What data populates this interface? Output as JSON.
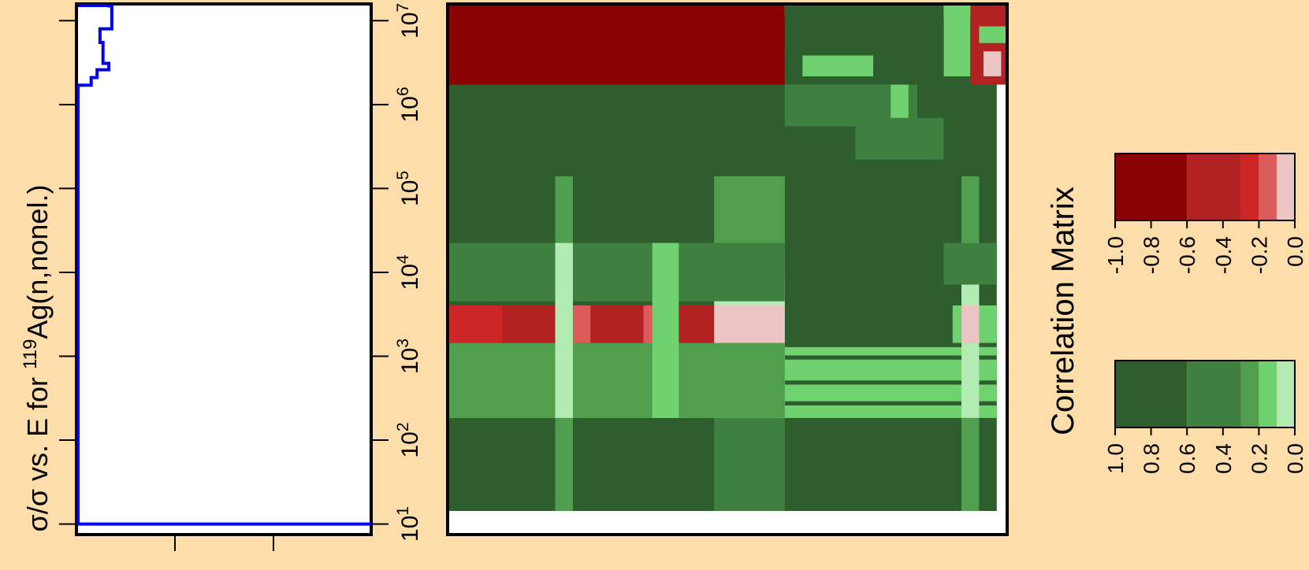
{
  "colors": {
    "background": "#FDDDAA",
    "uncertainty_line": "#0000EE",
    "negative_scale": [
      "#8B0000",
      "#B22222",
      "#CD2626",
      "#DC5C5C",
      "#EBC4C4"
    ],
    "positive_scale": [
      "#2E5E2E",
      "#3F7F3F",
      "#4F9F4F",
      "#6FD26F",
      "#B2ECB2"
    ]
  },
  "left_panel": {
    "ylabel_prefix": "σ/σ vs. E for ",
    "ylabel_isotope": "119",
    "ylabel_suffix": "Ag(n,nonel.)"
  },
  "energy_ticks": [
    {
      "base": "10",
      "exp": "1"
    },
    {
      "base": "10",
      "exp": "2"
    },
    {
      "base": "10",
      "exp": "3"
    },
    {
      "base": "10",
      "exp": "4"
    },
    {
      "base": "10",
      "exp": "5"
    },
    {
      "base": "10",
      "exp": "6"
    },
    {
      "base": "10",
      "exp": "7"
    }
  ],
  "legend": {
    "title": "Correlation Matrix",
    "negative_labels": [
      "-1.0",
      "-0.8",
      "-0.6",
      "-0.4",
      "-0.2",
      "0.0"
    ],
    "positive_labels": [
      "1.0",
      "0.8",
      "0.6",
      "0.4",
      "0.2",
      "0.0"
    ]
  },
  "chart_data": [
    {
      "type": "line",
      "description_axis": "log10 energy",
      "x_scale": "linear",
      "y_scale": "log",
      "ylim": [
        10,
        20000000
      ],
      "series": [
        {
          "points": [
            [
              0.0,
              20000000
            ],
            [
              0.1,
              20000000
            ],
            [
              0.1,
              17000000
            ],
            [
              0.11,
              17000000
            ],
            [
              0.11,
              15000000
            ],
            [
              0.12,
              15000000
            ],
            [
              0.12,
              8000000
            ],
            [
              0.08,
              8000000
            ],
            [
              0.08,
              5500000
            ],
            [
              0.09,
              5500000
            ],
            [
              0.09,
              3100000
            ],
            [
              0.11,
              3100000
            ],
            [
              0.11,
              2600000
            ],
            [
              0.07,
              2600000
            ],
            [
              0.07,
              2100000
            ],
            [
              0.05,
              2100000
            ],
            [
              0.05,
              1700000
            ],
            [
              0.0,
              1700000
            ],
            [
              -0.05,
              1700000
            ],
            [
              -0.05,
              1050000
            ],
            [
              -0.08,
              1050000
            ],
            [
              -0.08,
              820000
            ],
            [
              -0.1,
              820000
            ],
            [
              -0.1,
              610000
            ],
            [
              -0.12,
              610000
            ],
            [
              -0.12,
              200000
            ],
            [
              -0.2,
              200000
            ],
            [
              -0.2,
              290
            ],
            [
              -0.22,
              290
            ],
            [
              -0.22,
              10
            ],
            [
              0.0,
              10
            ],
            [
              1.0,
              10
            ]
          ]
        }
      ]
    },
    {
      "type": "heatmap",
      "x_axis": "energy (log scale, 10^1 to 10^7)",
      "y_axis": "energy (log scale, 10^1 to 10^7)",
      "value_range": [
        -1,
        1
      ],
      "blocks": [
        {
          "x": [
            1.0,
            7.2
          ],
          "y": [
            1.0,
            7.2
          ],
          "v": 0.9
        },
        {
          "x": [
            1.0,
            4.8
          ],
          "y": [
            6.4,
            7.35
          ],
          "v": -1.0
        },
        {
          "x": [
            2.2,
            4.8
          ],
          "y": [
            6.8,
            7.25
          ],
          "v": -1.0
        },
        {
          "x": [
            4.8,
            6.6
          ],
          "y": [
            6.4,
            7.35
          ],
          "v": 0.85
        },
        {
          "x": [
            5.0,
            5.8
          ],
          "y": [
            6.5,
            6.75
          ],
          "v": 0.3
        },
        {
          "x": [
            5.9,
            6.3
          ],
          "y": [
            6.5,
            6.7
          ],
          "v": 0.85
        },
        {
          "x": [
            6.6,
            6.9
          ],
          "y": [
            6.5,
            7.35
          ],
          "v": 0.2
        },
        {
          "x": [
            6.9,
            7.3
          ],
          "y": [
            6.4,
            7.35
          ],
          "v": -0.7
        },
        {
          "x": [
            7.0,
            7.3
          ],
          "y": [
            6.9,
            7.1
          ],
          "v": 0.2
        },
        {
          "x": [
            7.05,
            7.25
          ],
          "y": [
            6.5,
            6.8
          ],
          "v": -0.2
        },
        {
          "x": [
            4.8,
            6.8
          ],
          "y": [
            5.5,
            6.4
          ],
          "v": 0.9
        },
        {
          "x": [
            4.8,
            5.6
          ],
          "y": [
            5.9,
            6.4
          ],
          "v": 0.7
        },
        {
          "x": [
            5.6,
            6.3
          ],
          "y": [
            6.0,
            6.4
          ],
          "v": 0.6
        },
        {
          "x": [
            6.0,
            6.2
          ],
          "y": [
            6.0,
            6.4
          ],
          "v": 0.3
        },
        {
          "x": [
            5.6,
            6.6
          ],
          "y": [
            5.5,
            6.0
          ],
          "v": 0.7
        },
        {
          "x": [
            4.0,
            4.8
          ],
          "y": [
            1.0,
            5.3
          ],
          "v": 0.7
        },
        {
          "x": [
            4.0,
            4.8
          ],
          "y": [
            4.1,
            5.3
          ],
          "v": 0.5
        },
        {
          "x": [
            4.0,
            4.8
          ],
          "y": [
            2.4,
            4.1
          ],
          "v": 0.15
        },
        {
          "x": [
            1.0,
            4.8
          ],
          "y": [
            3.3,
            3.75
          ],
          "v": -0.6
        },
        {
          "x": [
            1.0,
            1.6
          ],
          "y": [
            3.3,
            3.75
          ],
          "v": -0.5
        },
        {
          "x": [
            2.2,
            2.6
          ],
          "y": [
            3.3,
            3.75
          ],
          "v": -0.3
        },
        {
          "x": [
            3.2,
            3.4
          ],
          "y": [
            3.3,
            3.75
          ],
          "v": -0.3
        },
        {
          "x": [
            4.0,
            4.8
          ],
          "y": [
            3.3,
            3.75
          ],
          "v": -0.1
        },
        {
          "x": [
            1.0,
            7.2
          ],
          "y": [
            2.85,
            3.1
          ],
          "v": 0.2
        },
        {
          "x": [
            1.0,
            7.2
          ],
          "y": [
            2.6,
            2.8
          ],
          "v": 0.2
        },
        {
          "x": [
            1.0,
            7.2
          ],
          "y": [
            2.4,
            2.55
          ],
          "v": 0.3
        },
        {
          "x": [
            1.0,
            7.2
          ],
          "y": [
            3.15,
            3.25
          ],
          "v": 0.25
        },
        {
          "x": [
            1.0,
            4.8
          ],
          "y": [
            3.8,
            4.5
          ],
          "v": 0.6
        },
        {
          "x": [
            1.0,
            4.8
          ],
          "y": [
            2.4,
            3.3
          ],
          "v": 0.5
        },
        {
          "x": [
            2.2,
            2.4
          ],
          "y": [
            1.0,
            5.3
          ],
          "v": 0.4
        },
        {
          "x": [
            2.2,
            2.4
          ],
          "y": [
            2.4,
            4.5
          ],
          "v": 0.15
        },
        {
          "x": [
            3.3,
            3.6
          ],
          "y": [
            2.4,
            4.5
          ],
          "v": 0.3
        },
        {
          "x": [
            6.8,
            7.0
          ],
          "y": [
            1.0,
            5.3
          ],
          "v": 0.5
        },
        {
          "x": [
            6.8,
            7.0
          ],
          "y": [
            2.4,
            4.5
          ],
          "v": 0.15
        },
        {
          "x": [
            6.7,
            7.2
          ],
          "y": [
            3.3,
            3.75
          ],
          "v": 0.2
        },
        {
          "x": [
            6.8,
            7.0
          ],
          "y": [
            3.3,
            3.75
          ],
          "v": -0.1
        },
        {
          "x": [
            6.6,
            7.2
          ],
          "y": [
            4.0,
            4.5
          ],
          "v": 0.7
        }
      ]
    }
  ]
}
